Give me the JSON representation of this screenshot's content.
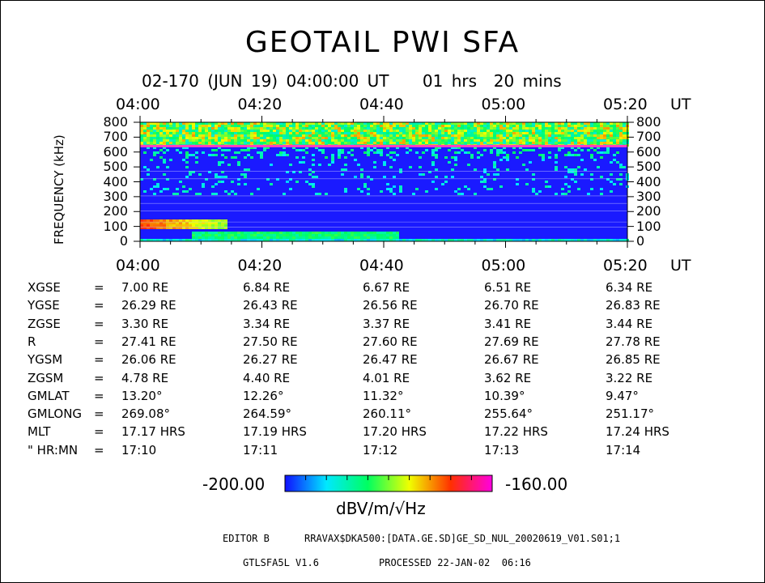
{
  "chart_data": {
    "type": "heatmap",
    "title": "GEOTAIL PWI SFA",
    "subtitle": "02-170 (JUN 19) 04:00:00 UT    01 hrs  20 mins",
    "xlabel": "UT",
    "ylabel": "FREQUENCY (kHz)",
    "x_ticks": [
      "04:00",
      "04:20",
      "04:40",
      "05:00",
      "05:20"
    ],
    "y_ticks": [
      0,
      100,
      200,
      300,
      400,
      500,
      600,
      700,
      800
    ],
    "ylim": [
      0,
      800
    ],
    "xlim_minutes": [
      0,
      80
    ],
    "colorbar": {
      "min_label": "-200.00",
      "max_label": "-160.00",
      "unit": "dBV/m/√Hz",
      "colors": [
        "#1010ff",
        "#00e8ff",
        "#00ff60",
        "#f0ff00",
        "#ff3000",
        "#ff00e0"
      ]
    },
    "features": [
      {
        "type": "line",
        "freq": 640,
        "color": "#ff40c0"
      },
      {
        "type": "band",
        "freq": [
          650,
          800
        ],
        "level": "high"
      },
      {
        "type": "band",
        "freq": [
          90,
          150
        ],
        "minutes": [
          0,
          12
        ],
        "level": "very-high"
      },
      {
        "type": "band",
        "freq": [
          20,
          60
        ],
        "minutes": [
          10,
          40
        ],
        "level": "high"
      }
    ]
  },
  "orbit_table": {
    "rows": [
      {
        "label": "XGSE",
        "sep": "=",
        "values": [
          "7.00 RE",
          "6.84 RE",
          "6.67 RE",
          "6.51 RE",
          "6.34 RE"
        ]
      },
      {
        "label": "YGSE",
        "sep": "=",
        "values": [
          "26.29 RE",
          "26.43 RE",
          "26.56 RE",
          "26.70 RE",
          "26.83 RE"
        ]
      },
      {
        "label": "ZGSE",
        "sep": "=",
        "values": [
          "3.30 RE",
          "3.34 RE",
          "3.37 RE",
          "3.41 RE",
          "3.44 RE"
        ]
      },
      {
        "label": "R",
        "sep": "=",
        "values": [
          "27.41 RE",
          "27.50 RE",
          "27.60 RE",
          "27.69 RE",
          "27.78 RE"
        ]
      },
      {
        "label": "YGSM",
        "sep": "=",
        "values": [
          "26.06 RE",
          "26.27 RE",
          "26.47 RE",
          "26.67 RE",
          "26.85 RE"
        ]
      },
      {
        "label": "ZGSM",
        "sep": "=",
        "values": [
          "4.78 RE",
          "4.40 RE",
          "4.01 RE",
          "3.62 RE",
          "3.22 RE"
        ]
      },
      {
        "label": "GMLAT",
        "sep": "=",
        "values": [
          "13.20°",
          "12.26°",
          "11.32°",
          "10.39°",
          "9.47°"
        ]
      },
      {
        "label": "GMLONG",
        "sep": "=",
        "values": [
          "269.08°",
          "264.59°",
          "260.11°",
          "255.64°",
          "251.17°"
        ]
      },
      {
        "label": "MLT",
        "sep": "=",
        "values": [
          "17.17 HRS",
          "17.19 HRS",
          "17.20 HRS",
          "17.22 HRS",
          "17.24 HRS"
        ]
      },
      {
        "label": "\" HR:MN",
        "sep": "=",
        "values": [
          "17:10",
          "17:11",
          "17:12",
          "17:13",
          "17:14"
        ]
      }
    ]
  },
  "footer": {
    "editor": "EDITOR B",
    "path": "RRAVAX$DKA500:[DATA.GE.SD]GE_SD_NUL_20020619_V01.S01;1",
    "version": "GTLSFA5L V1.6",
    "processed": "PROCESSED 22-JAN-02  06:16"
  }
}
